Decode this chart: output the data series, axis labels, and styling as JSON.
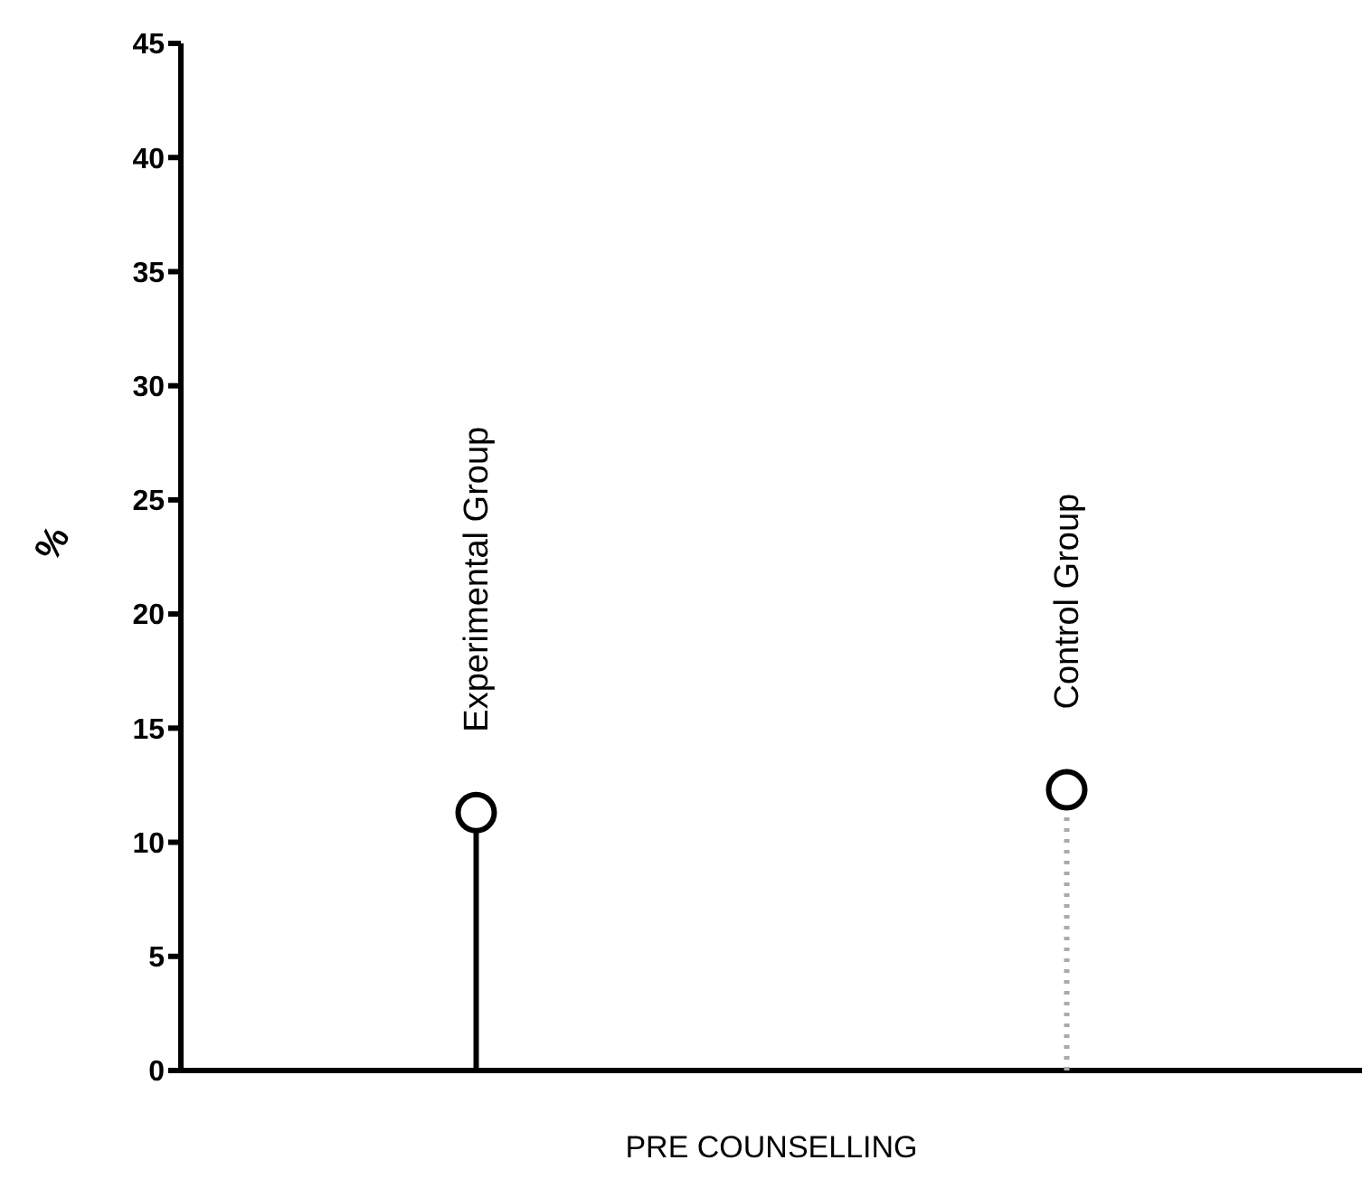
{
  "chart_data": {
    "type": "lollipop",
    "xlabel": "PRE COUNSELLING",
    "ylabel": "%",
    "categories": [
      null,
      null
    ],
    "series": [
      {
        "name": "Experimental Group",
        "color": "#000000",
        "line_style": "solid",
        "values": [
          11.3,
          null
        ]
      },
      {
        "name": "Control Group",
        "color": "#000000",
        "line_style": "dotted",
        "values": [
          null,
          12.3
        ]
      }
    ],
    "ylim": [
      0,
      45
    ],
    "yticks": [
      0,
      5,
      10,
      15,
      20,
      25,
      30,
      35,
      40,
      45
    ],
    "marker": "circle",
    "grid": false,
    "legend": false
  }
}
